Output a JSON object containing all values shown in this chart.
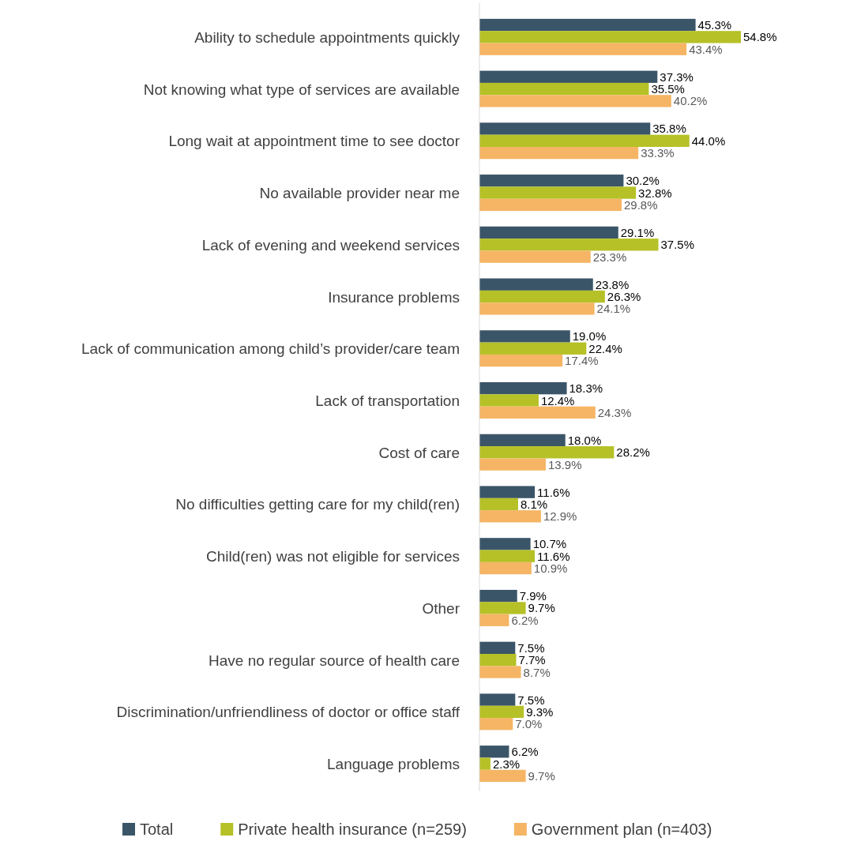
{
  "chart_data": {
    "type": "bar",
    "orientation": "horizontal",
    "legend": "bottom",
    "categories": [
      "Ability to schedule appointments quickly",
      "Not knowing what type of services are available",
      "Long wait at appointment time to see doctor",
      "No available provider near me",
      "Lack of evening and weekend services",
      "Insurance problems",
      "Lack of communication among child’s provider/care team",
      "Lack of transportation",
      "Cost of care",
      "No difficulties getting care for my child(ren)",
      "Child(ren) was not eligible for services",
      "Other",
      "Have no regular source of health care",
      "Discrimination/unfriendliness of doctor or office staff",
      "Language problems"
    ],
    "series": [
      {
        "name": "Total",
        "color": "#3b5568",
        "values": [
          45.3,
          37.3,
          35.8,
          30.2,
          29.1,
          23.8,
          19.0,
          18.3,
          18.0,
          11.6,
          10.7,
          7.9,
          7.5,
          7.5,
          6.2
        ],
        "value_labels": [
          "45.3%",
          "37.3%",
          "35.8%",
          "30.2%",
          "29.1%",
          "23.8%",
          "19.0%",
          "18.3%",
          "18.0%",
          "11.6%",
          "10.7%",
          "7.9%",
          "7.5%",
          "7.5%",
          "6.2%"
        ]
      },
      {
        "name": "Private health insurance (n=259)",
        "color": "#b5c126",
        "values": [
          54.8,
          35.5,
          44.0,
          32.8,
          37.5,
          26.3,
          22.4,
          12.4,
          28.2,
          8.1,
          11.6,
          9.7,
          7.7,
          9.3,
          2.3
        ],
        "value_labels": [
          "54.8%",
          "35.5%",
          "44.0%",
          "32.8%",
          "37.5%",
          "26.3%",
          "22.4%",
          "12.4%",
          "28.2%",
          "8.1%",
          "11.6%",
          "9.7%",
          "7.7%",
          "9.3%",
          "2.3%"
        ]
      },
      {
        "name": "Government plan (n=403)",
        "color": "#f5b564",
        "values": [
          43.4,
          40.2,
          33.3,
          29.8,
          23.3,
          24.1,
          17.4,
          24.3,
          13.9,
          12.9,
          10.9,
          6.2,
          8.7,
          7.0,
          9.7
        ],
        "value_labels": [
          "43.4%",
          "40.2%",
          "33.3%",
          "29.8%",
          "23.3%",
          "24.1%",
          "17.4%",
          "24.3%",
          "13.9%",
          "12.9%",
          "10.9%",
          "6.2%",
          "8.7%",
          "7.0%",
          "9.7%"
        ]
      }
    ]
  }
}
